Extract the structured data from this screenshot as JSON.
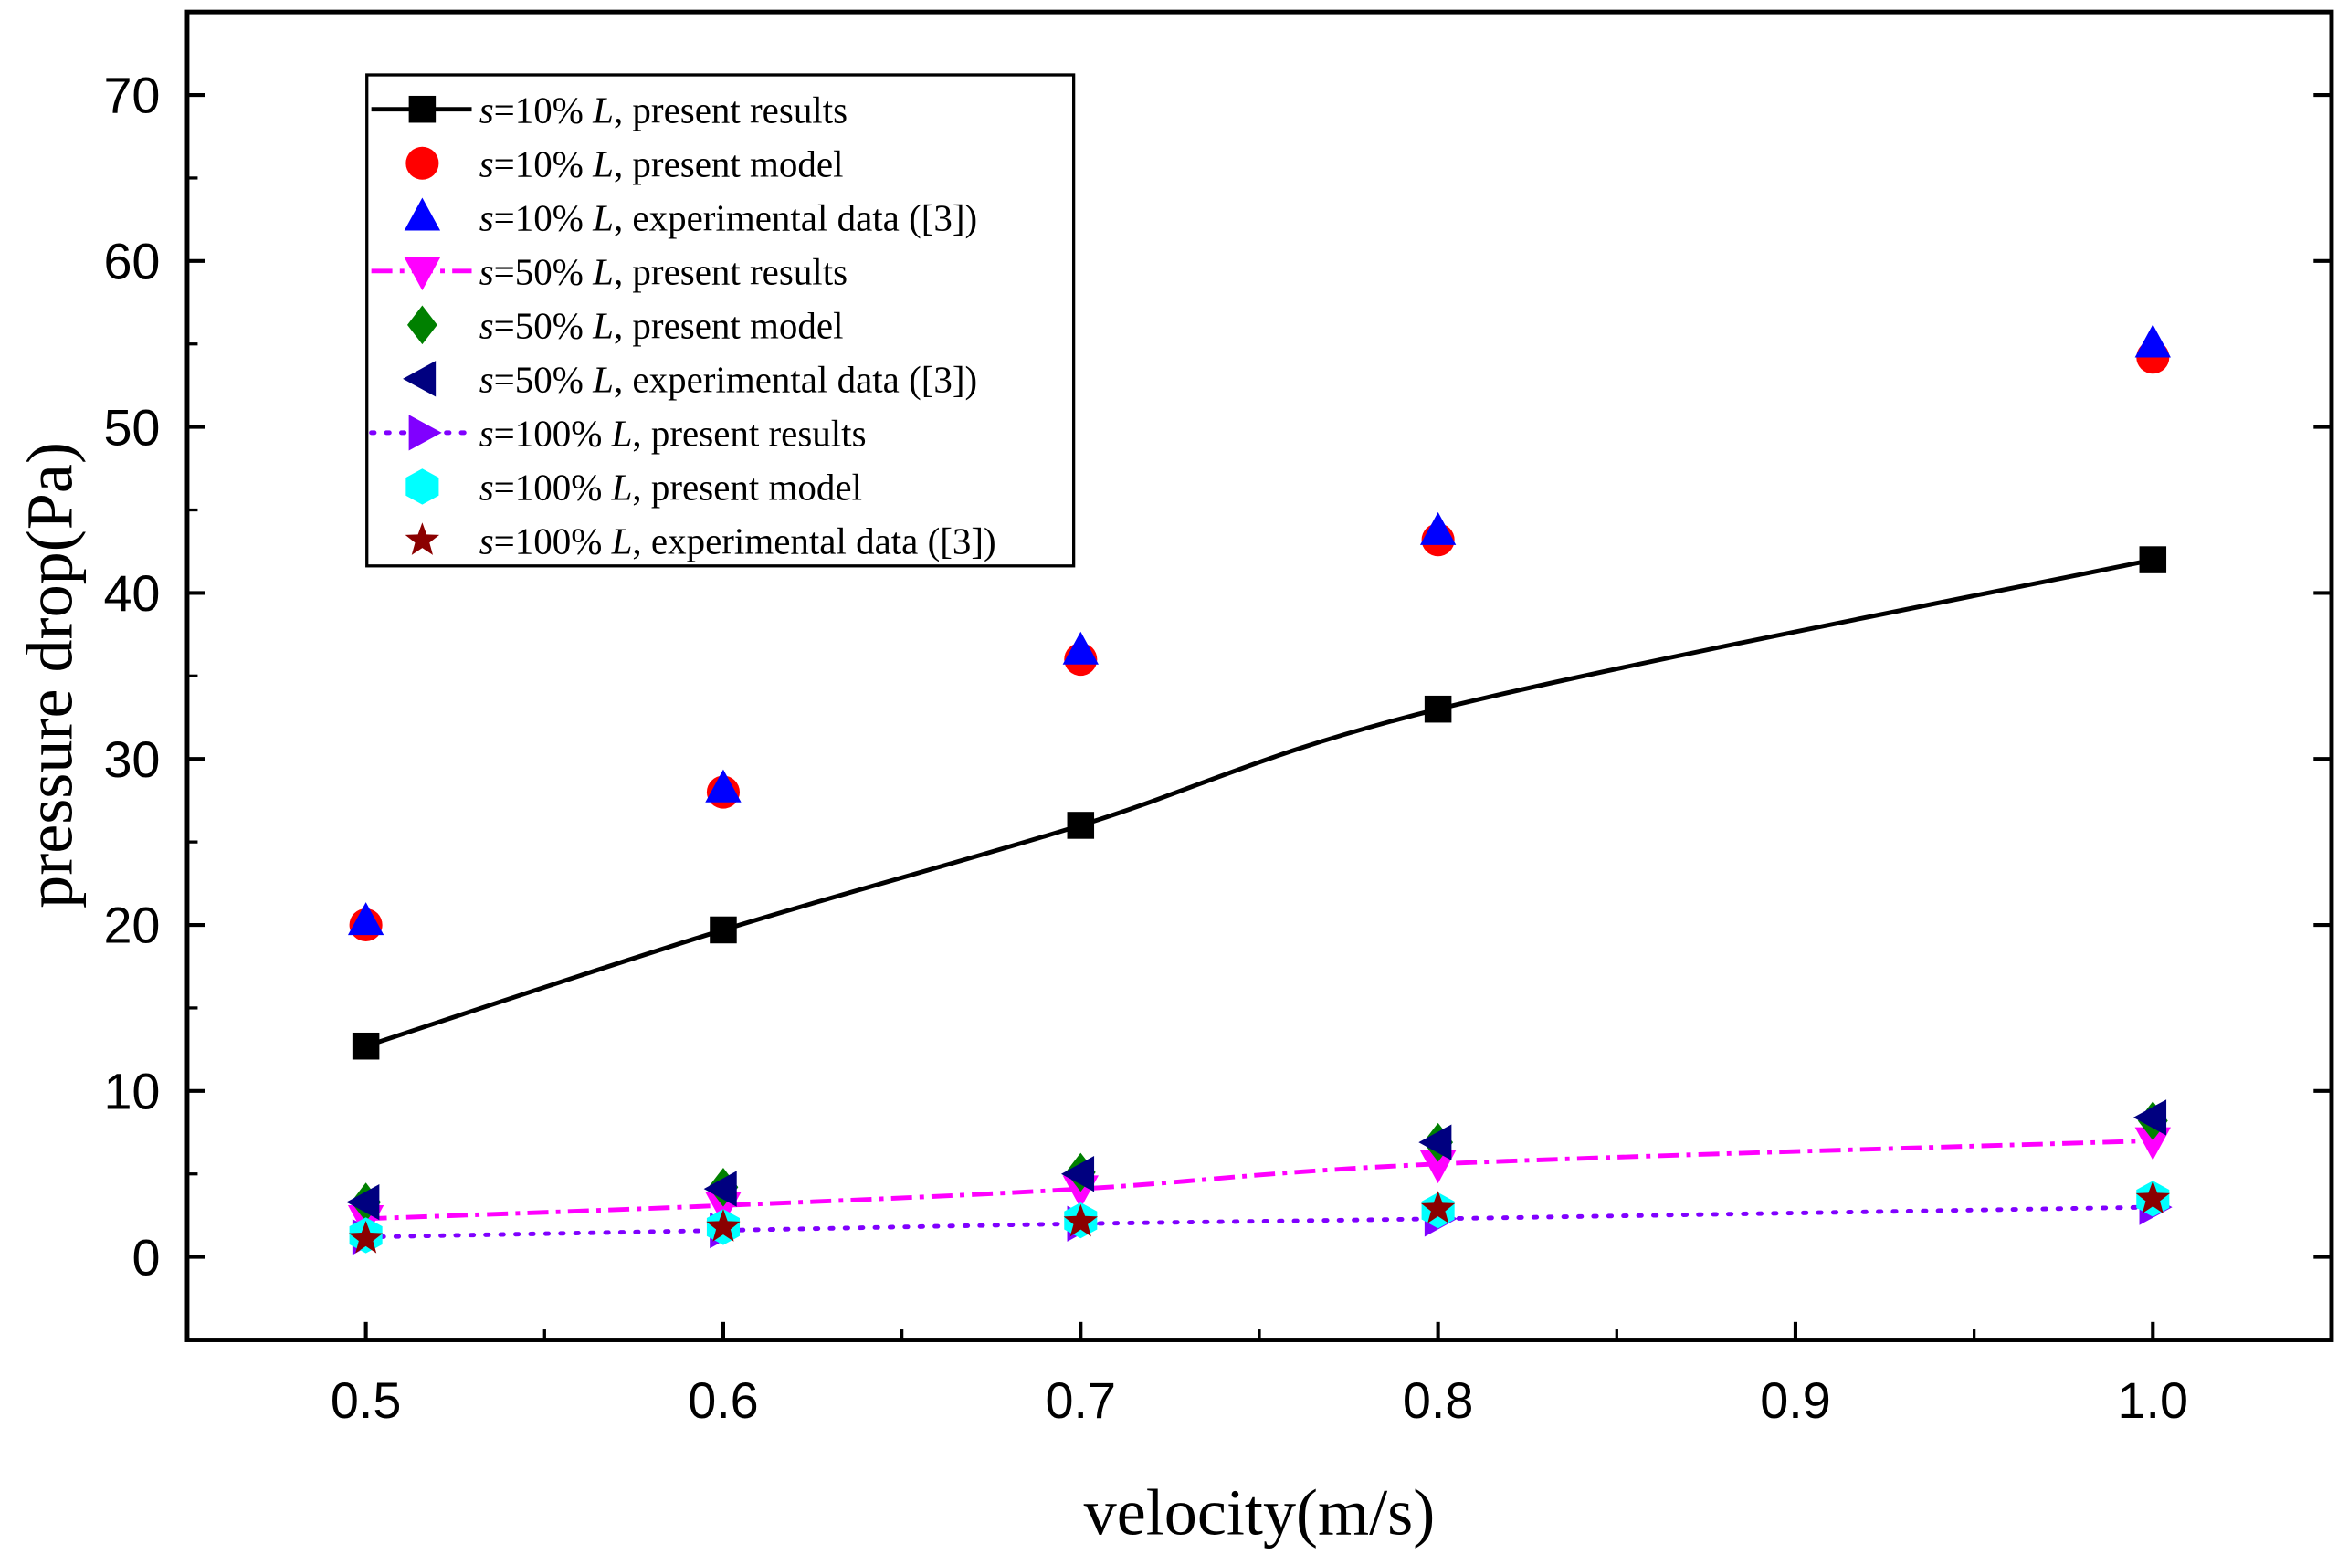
{
  "chart_data": {
    "type": "line",
    "title": "",
    "xlabel": "velocity(m/s)",
    "ylabel": "pressure drop(Pa)",
    "xlim": [
      0.45,
      1.05
    ],
    "ylim": [
      -5,
      75
    ],
    "xticks": [
      0.5,
      0.6,
      0.7,
      0.8,
      0.9,
      1.0
    ],
    "xtick_labels": [
      "0.5",
      "0.6",
      "0.7",
      "0.8",
      "0.9",
      "1.0"
    ],
    "yticks": [
      0,
      10,
      20,
      30,
      40,
      50,
      60,
      70
    ],
    "ytick_labels": [
      "0",
      "10",
      "20",
      "30",
      "40",
      "50",
      "60",
      "70"
    ],
    "grid": false,
    "legend_position": "top-left",
    "x": [
      0.5,
      0.6,
      0.7,
      0.8,
      1.0
    ],
    "series": [
      {
        "name": "s=10% L, present results",
        "s": "s",
        "rest": "=10% ",
        "L": "L",
        "tail": ", present results",
        "color": "#000000",
        "marker": "square",
        "line": "solid",
        "values": [
          12.7,
          19.7,
          26.0,
          33.0,
          42.0
        ]
      },
      {
        "name": "s=10% L, present model",
        "s": "s",
        "rest": "=10% ",
        "L": "L",
        "tail": ", present model",
        "color": "#ff0000",
        "marker": "circle",
        "line": "none",
        "values": [
          20.0,
          28.0,
          36.0,
          43.2,
          54.2
        ]
      },
      {
        "name": "s=10% L, experimental data ([3])",
        "s": "s",
        "rest": "=10% ",
        "L": "L",
        "tail": ", experimental data ([3])",
        "color": "#0000ff",
        "marker": "triangle-up",
        "line": "none",
        "values": [
          20.2,
          28.2,
          36.5,
          43.7,
          55.0
        ]
      },
      {
        "name": "s=50% L, present results",
        "s": "s",
        "rest": "=50% ",
        "L": "L",
        "tail": ", present results",
        "color": "#ff00ff",
        "marker": "triangle-down",
        "line": "dashdot",
        "values": [
          2.3,
          3.1,
          4.1,
          5.6,
          7.0
        ]
      },
      {
        "name": "s=50% L, present model",
        "s": "s",
        "rest": "=50% ",
        "L": "L",
        "tail": ", present model",
        "color": "#008000",
        "marker": "diamond",
        "line": "none",
        "values": [
          3.3,
          4.2,
          5.1,
          6.9,
          8.2
        ]
      },
      {
        "name": "s=50% L, experimental data ([3])",
        "s": "s",
        "rest": "=50% ",
        "L": "L",
        "tail": ", experimental data ([3])",
        "color": "#000080",
        "marker": "triangle-left",
        "line": "none",
        "values": [
          3.3,
          4.1,
          5.0,
          6.9,
          8.4
        ]
      },
      {
        "name": "s=100% L, present results",
        "s": "s",
        "rest": "=100% ",
        "L": "L",
        "tail": ", present results",
        "color": "#8000ff",
        "marker": "triangle-right",
        "line": "dot",
        "values": [
          1.2,
          1.6,
          2.0,
          2.3,
          3.0
        ]
      },
      {
        "name": "s=100% L, present model",
        "s": "s",
        "rest": "=100% ",
        "L": "L",
        "tail": ", present model",
        "color": "#00ffff",
        "marker": "hexagon",
        "line": "none",
        "values": [
          1.3,
          1.8,
          2.2,
          2.8,
          3.5
        ]
      },
      {
        "name": "s=100% L, experimental data ([3])",
        "s": "s",
        "rest": "=100% ",
        "L": "L",
        "tail": ", experimental data ([3])",
        "color": "#8b0000",
        "marker": "star",
        "line": "none",
        "values": [
          1.1,
          1.8,
          2.1,
          2.9,
          3.5
        ]
      }
    ]
  }
}
